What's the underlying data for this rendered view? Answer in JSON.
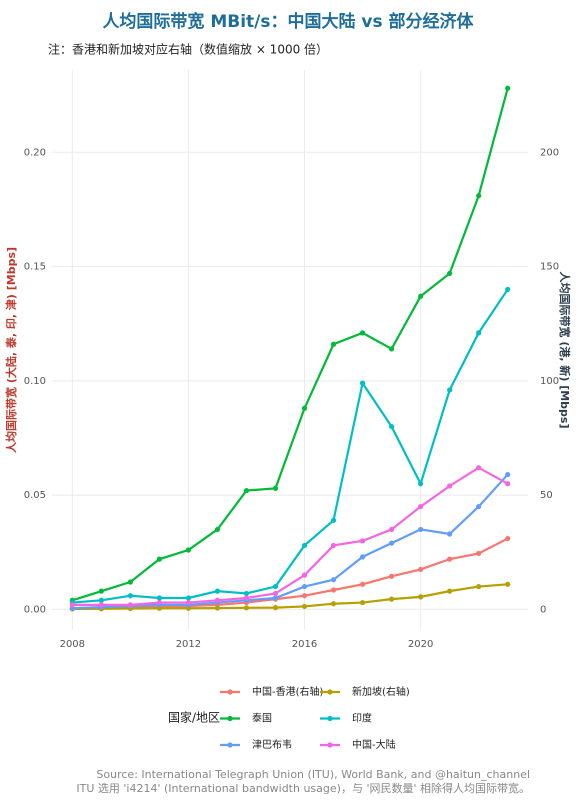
{
  "chart_data": {
    "type": "line",
    "title": "人均国际带宽 MBit/s：中国大陆 vs 部分经济体",
    "subtitle": "注：香港和新加坡对应右轴（数值缩放 × 1000 倍）",
    "y_label": "人均国际带宽 (大陆, 泰, 印, 津) [Mbps]",
    "y2_label": "人均国际带宽 (港, 新) [Mbps]",
    "legend_title": "国家/地区",
    "caption": [
      "Source: International Telegraph Union (ITU), World Bank, and @haitun_channel",
      "ITU 选用 'i4214' (International bandwidth usage)，与 '网民数量' 相除得人均国际带宽。"
    ],
    "x": [
      2008,
      2009,
      2010,
      2011,
      2012,
      2013,
      2014,
      2015,
      2016,
      2017,
      2018,
      2019,
      2020,
      2021,
      2022,
      2023
    ],
    "xlim": [
      2007.3,
      2023.7
    ],
    "xticks": [
      2008,
      2012,
      2016,
      2020
    ],
    "ylim": [
      -0.009,
      0.236
    ],
    "yticks": [
      {
        "value": 0,
        "label": "0.00"
      },
      {
        "value": 0.05,
        "label": "0.05"
      },
      {
        "value": 0.1,
        "label": "0.10"
      },
      {
        "value": 0.15,
        "label": "0.15"
      },
      {
        "value": 0.2,
        "label": "0.20"
      }
    ],
    "y2lim": [
      -9,
      236
    ],
    "y2ticks": [
      0,
      50,
      100,
      150,
      200
    ],
    "grid": true,
    "series": [
      {
        "name": "中国-香港(右轴)",
        "color": "#F8766D",
        "axis": "y2",
        "values": [
          0.5,
          0.8,
          1,
          1,
          1.5,
          2,
          3,
          4.5,
          6,
          8.5,
          11,
          14.5,
          17.5,
          22,
          24.5,
          31
        ]
      },
      {
        "name": "新加坡(右轴)",
        "color": "#B79F00",
        "axis": "y2",
        "values": [
          0.2,
          0.3,
          0.4,
          0.5,
          0.5,
          0.6,
          0.7,
          0.8,
          1.3,
          2.5,
          3,
          4.5,
          5.5,
          8,
          10,
          11
        ]
      },
      {
        "name": "泰国",
        "color": "#00BA38",
        "values": [
          0.004,
          0.008,
          0.012,
          0.022,
          0.026,
          0.035,
          0.052,
          0.053,
          0.088,
          0.116,
          0.121,
          0.114,
          0.137,
          0.147,
          0.181,
          0.228
        ]
      },
      {
        "name": "印度",
        "color": "#00BFC4",
        "values": [
          0.003,
          0.004,
          0.006,
          0.005,
          0.005,
          0.008,
          0.007,
          0.01,
          0.028,
          0.039,
          0.099,
          0.08,
          0.055,
          0.096,
          0.121,
          0.14
        ]
      },
      {
        "name": "津巴布韦",
        "color": "#619CFF",
        "values": [
          0.0005,
          0.001,
          0.0015,
          0.002,
          0.002,
          0.003,
          0.004,
          0.005,
          0.01,
          0.013,
          0.023,
          0.029,
          0.035,
          0.033,
          0.045,
          0.059
        ]
      },
      {
        "name": "中国-大陆",
        "color": "#F564E3",
        "values": [
          0.002,
          0.002,
          0.002,
          0.003,
          0.003,
          0.004,
          0.005,
          0.007,
          0.015,
          0.028,
          0.03,
          0.035,
          0.045,
          0.054,
          0.062,
          0.055
        ]
      }
    ]
  }
}
